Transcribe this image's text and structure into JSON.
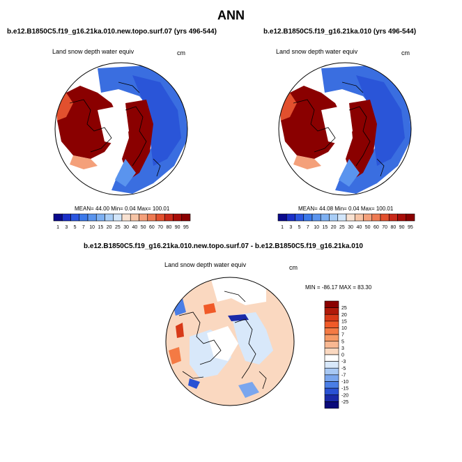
{
  "title": "ANN",
  "panels": [
    {
      "title": "b.e12.B1850C5.f19_g16.21ka.010.new.topo.surf.07 (yrs 496-544)",
      "variable": "Land snow depth water equiv",
      "units": "cm",
      "stats": "MEAN= 44.00  Min=  0.04  Max= 100.01"
    },
    {
      "title": "b.e12.B1850C5.f19_g16.21ka.010 (yrs 496-544)",
      "variable": "Land snow depth water equiv",
      "units": "cm",
      "stats": "MEAN= 44.08  Min=  0.04  Max= 100.01"
    },
    {
      "title": "b.e12.B1850C5.f19_g16.21ka.010.new.topo.surf.07 - b.e12.B1850C5.f19_g16.21ka.010",
      "variable": "Land snow depth water equiv",
      "units": "cm",
      "stats": "MIN = -86.17 MAX =  83.30"
    }
  ],
  "chart_data": [
    {
      "type": "heatmap",
      "projection": "north polar stereographic",
      "colorbar_orientation": "horizontal",
      "colorbar_levels": [
        "1",
        "3",
        "5",
        "7",
        "10",
        "15",
        "20",
        "25",
        "30",
        "40",
        "50",
        "60",
        "70",
        "80",
        "90",
        "95"
      ],
      "colorbar_colors": [
        "#0a0a8c",
        "#1a2fc8",
        "#2a55e0",
        "#3a78ea",
        "#5a94ee",
        "#7db0f2",
        "#a8cdf6",
        "#d2e6fa",
        "#f8e2d2",
        "#f6c4a6",
        "#f4a07a",
        "#ee7a52",
        "#e2502e",
        "#c82818",
        "#a80c08",
        "#8a0000"
      ],
      "mean": 44.0,
      "min": 0.04,
      "max": 100.01
    },
    {
      "type": "heatmap",
      "projection": "north polar stereographic",
      "colorbar_orientation": "horizontal",
      "colorbar_levels": [
        "1",
        "3",
        "5",
        "7",
        "10",
        "15",
        "20",
        "25",
        "30",
        "40",
        "50",
        "60",
        "70",
        "80",
        "90",
        "95"
      ],
      "colorbar_colors": [
        "#0a0a8c",
        "#1a2fc8",
        "#2a55e0",
        "#3a78ea",
        "#5a94ee",
        "#7db0f2",
        "#a8cdf6",
        "#d2e6fa",
        "#f8e2d2",
        "#f6c4a6",
        "#f4a07a",
        "#ee7a52",
        "#e2502e",
        "#c82818",
        "#a80c08",
        "#8a0000"
      ],
      "mean": 44.08,
      "min": 0.04,
      "max": 100.01
    },
    {
      "type": "heatmap",
      "projection": "north polar stereographic",
      "colorbar_orientation": "vertical",
      "colorbar_levels": [
        "25",
        "20",
        "15",
        "10",
        "7",
        "5",
        "3",
        "0",
        "-3",
        "-5",
        "-7",
        "-10",
        "-15",
        "-20",
        "-25"
      ],
      "colorbar_colors": [
        "#8a0000",
        "#b01a0a",
        "#d83a18",
        "#f05a28",
        "#f47a44",
        "#f69a66",
        "#f8b892",
        "#fad8c0",
        "#ffffff",
        "#d8e8fa",
        "#a8c8f4",
        "#7aa6ee",
        "#4a7ee6",
        "#2a52d4",
        "#1a2aa8",
        "#0a0a7a"
      ],
      "min": -86.17,
      "max": 83.3
    }
  ]
}
